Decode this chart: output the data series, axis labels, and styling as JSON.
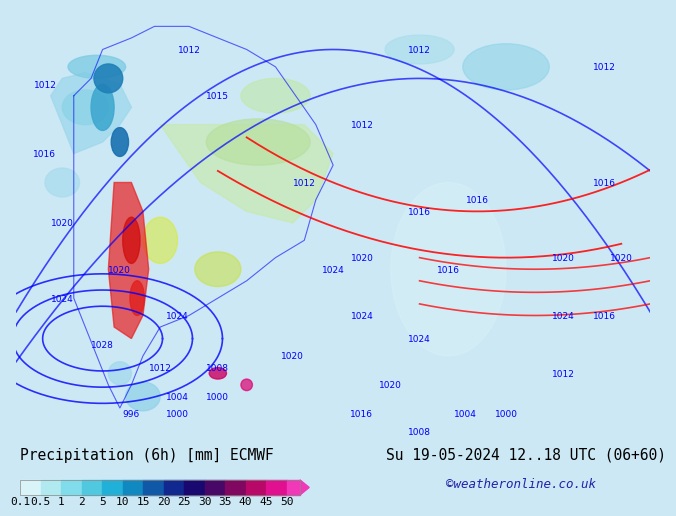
{
  "title_left": "Precipitation (6h) [mm] ECMWF",
  "title_right": "Su 19-05-2024 12..18 UTC (06+60)",
  "credit": "©weatheronline.co.uk",
  "colorbar_labels": [
    "0.1",
    "0.5",
    "1",
    "2",
    "5",
    "10",
    "15",
    "20",
    "25",
    "30",
    "35",
    "40",
    "45",
    "50"
  ],
  "colorbar_colors": [
    "#d8f4f8",
    "#b0eaf0",
    "#80dcea",
    "#50c8e0",
    "#20b0d8",
    "#1088c0",
    "#1058a8",
    "#102890",
    "#180870",
    "#480868",
    "#800860",
    "#b80868",
    "#e01090",
    "#f038b8"
  ],
  "bg_color": "#cce8f4",
  "bottom_bg": "#ddeef8",
  "text_color": "#000000",
  "credit_color": "#2222aa",
  "title_fontsize": 10.5,
  "credit_fontsize": 9,
  "tick_fontsize": 8
}
